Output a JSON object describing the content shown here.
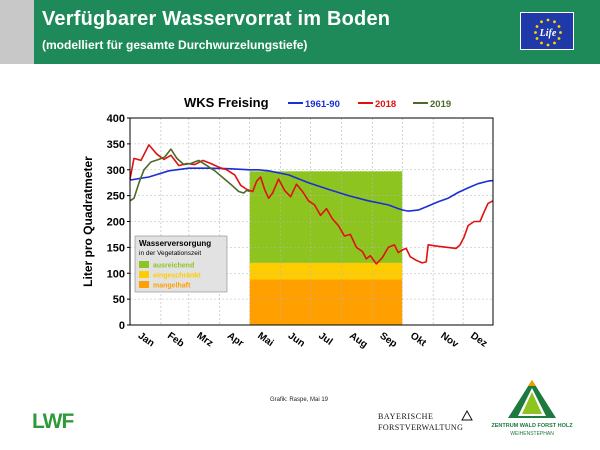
{
  "header": {
    "title": "Verfügbarer Wasservorrat im Boden",
    "subtitle": "(modelliert für gesamte Durchwurzelungstiefe)",
    "eu_logo_text": "Life"
  },
  "chart_data": {
    "type": "line",
    "title": "WKS Freising",
    "ylabel": "Liter pro Quadratmeter",
    "ylim": [
      0,
      400
    ],
    "yticks": [
      0,
      50,
      100,
      150,
      200,
      250,
      300,
      350,
      400
    ],
    "months": [
      "Jan",
      "Feb",
      "Mrz",
      "Apr",
      "Mai",
      "Jun",
      "Jul",
      "Aug",
      "Sep",
      "Okt",
      "Nov",
      "Dez"
    ],
    "x_unit_note": "day of year",
    "xlim": [
      1,
      365
    ],
    "series": [
      {
        "name": "1961-90",
        "color": "#1a2fd6",
        "x": [
          1,
          20,
          40,
          60,
          80,
          100,
          121,
          130,
          140,
          160,
          180,
          200,
          220,
          240,
          260,
          270,
          275,
          280,
          290,
          300,
          310,
          320,
          330,
          340,
          350,
          360,
          365
        ],
        "y": [
          280,
          286,
          298,
          303,
          303,
          302,
          300,
          300,
          298,
          290,
          275,
          262,
          250,
          240,
          232,
          225,
          222,
          220,
          222,
          230,
          238,
          245,
          256,
          265,
          273,
          278,
          279
        ]
      },
      {
        "name": "2018",
        "color": "#e01010",
        "x": [
          1,
          5,
          12,
          20,
          28,
          35,
          42,
          50,
          58,
          66,
          74,
          82,
          90,
          98,
          106,
          112,
          118,
          124,
          128,
          132,
          136,
          140,
          144,
          150,
          156,
          162,
          168,
          174,
          180,
          186,
          192,
          198,
          204,
          210,
          216,
          222,
          228,
          234,
          238,
          242,
          248,
          254,
          260,
          266,
          270,
          274,
          278,
          282,
          288,
          294,
          298,
          300,
          310,
          320,
          328,
          332,
          336,
          340,
          346,
          352,
          356,
          360,
          365
        ],
        "y": [
          282,
          322,
          318,
          348,
          330,
          320,
          328,
          308,
          312,
          310,
          318,
          312,
          305,
          300,
          290,
          270,
          262,
          258,
          278,
          286,
          262,
          245,
          255,
          282,
          260,
          248,
          272,
          258,
          240,
          232,
          212,
          225,
          205,
          192,
          172,
          175,
          150,
          142,
          128,
          134,
          118,
          130,
          150,
          155,
          140,
          145,
          148,
          132,
          125,
          120,
          122,
          155,
          152,
          150,
          148,
          155,
          170,
          192,
          200,
          200,
          218,
          235,
          240
        ]
      },
      {
        "name": "2019",
        "color": "#4b6b2a",
        "x": [
          1,
          5,
          10,
          15,
          22,
          30,
          36,
          42,
          48,
          55,
          62,
          70,
          78,
          86,
          94,
          102,
          110,
          115,
          118,
          121
        ],
        "y": [
          240,
          245,
          275,
          300,
          315,
          320,
          325,
          340,
          322,
          310,
          312,
          318,
          308,
          298,
          285,
          272,
          258,
          255,
          260,
          258
        ]
      }
    ],
    "zone_start": 121,
    "zone_end": 274,
    "zones": [
      {
        "label": "mangelhaft",
        "color": "#ffa000",
        "from": 0,
        "to": 88
      },
      {
        "label": "eingeschränkt",
        "color": "#ffcc00",
        "from": 88,
        "to": 120
      },
      {
        "label": "ausreichend",
        "color": "#8ec41f",
        "from": 120,
        "to": 297
      }
    ],
    "legend_box": {
      "title": "Wasserversorgung",
      "subtitle": "in der Vegetationszeit",
      "items": [
        {
          "label": "ausreichend",
          "color": "#8ec41f"
        },
        {
          "label": "eingeschränkt",
          "color": "#ffcc00"
        },
        {
          "label": "mangelhaft",
          "color": "#ffa000"
        }
      ]
    }
  },
  "credit": "Grafik: Raspe, Mai 19",
  "footer": {
    "lwf_logo": "LWF",
    "bayern_line1": "BAYERISCHE",
    "bayern_line2": "FORSTVERWALTUNG",
    "zentrum_line1": "ZENTRUM WALD FORST HOLZ",
    "zentrum_line2": "WEIHENSTEPHAN"
  }
}
